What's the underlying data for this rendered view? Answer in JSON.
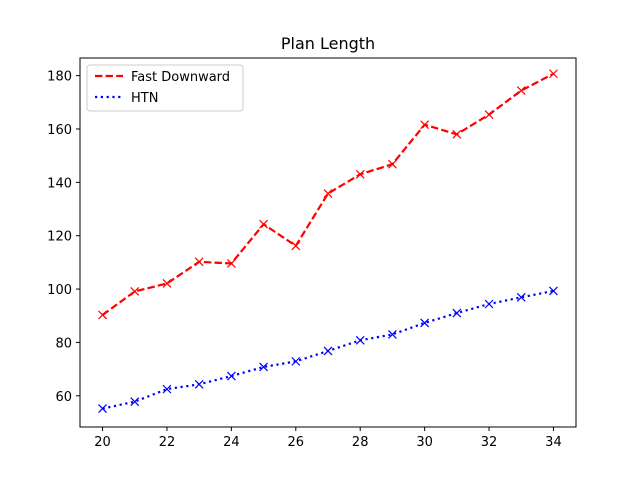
{
  "chart_data": {
    "type": "line",
    "title": "Plan Length",
    "xlabel": "",
    "ylabel": "",
    "x": [
      20,
      21,
      22,
      23,
      24,
      25,
      26,
      27,
      28,
      29,
      30,
      31,
      32,
      33,
      34
    ],
    "xlim": [
      19.3,
      34.7
    ],
    "ylim": [
      48.3,
      186.6
    ],
    "xticks": [
      20,
      22,
      24,
      26,
      28,
      30,
      32,
      34
    ],
    "yticks": [
      60,
      80,
      100,
      120,
      140,
      160,
      180
    ],
    "grid": false,
    "legend_position": "upper-left",
    "series": [
      {
        "name": "Fast Downward",
        "color": "#ff0000",
        "line_style": "dashed",
        "marker": "x",
        "values": [
          90.3,
          99.1,
          102.1,
          110.2,
          109.6,
          124.3,
          116.2,
          135.8,
          143.0,
          146.8,
          161.6,
          158.0,
          165.4,
          174.4,
          180.7
        ]
      },
      {
        "name": "HTN",
        "color": "#0000ff",
        "line_style": "dotted",
        "marker": "x",
        "values": [
          55.2,
          57.8,
          62.5,
          64.3,
          67.4,
          70.8,
          72.9,
          76.8,
          80.8,
          83.0,
          87.3,
          91.0,
          94.4,
          96.9,
          99.3
        ]
      }
    ]
  }
}
